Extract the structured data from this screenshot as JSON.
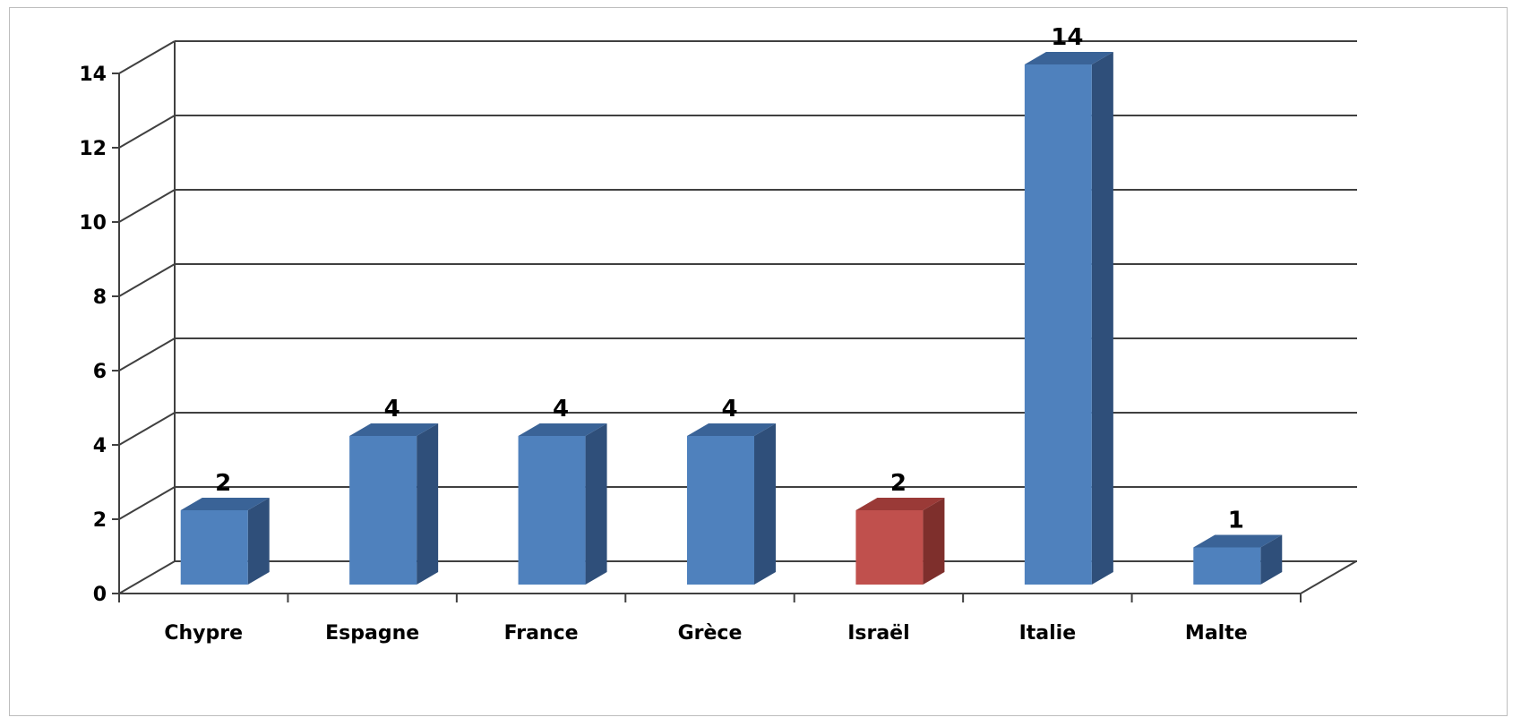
{
  "chart_data": {
    "type": "bar",
    "style": "3d-column",
    "categories": [
      "Chypre",
      "Espagne",
      "France",
      "Grèce",
      "Israël",
      "Italie",
      "Malte"
    ],
    "values": [
      2,
      4,
      4,
      4,
      2,
      14,
      1
    ],
    "title": "",
    "xlabel": "",
    "ylabel": "",
    "ylim": [
      0,
      14
    ],
    "yticks": [
      "0",
      "2",
      "4",
      "6",
      "8",
      "10",
      "12",
      "14"
    ],
    "grid": true,
    "legend": "none",
    "data_labels": [
      "2",
      "4",
      "4",
      "4",
      "2",
      "14",
      "1"
    ],
    "colors": {
      "default_front": "#4f81bd",
      "default_top": "#3a6397",
      "default_side": "#2f4f7a",
      "highlight_category": "Israël",
      "highlight_front": "#c0504d",
      "highlight_top": "#9a3a37",
      "highlight_side": "#7e2f2c",
      "gridline": "#404040"
    }
  }
}
